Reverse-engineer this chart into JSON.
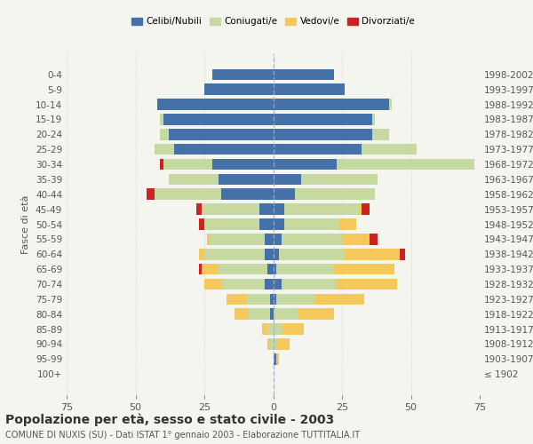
{
  "age_groups": [
    "100+",
    "95-99",
    "90-94",
    "85-89",
    "80-84",
    "75-79",
    "70-74",
    "65-69",
    "60-64",
    "55-59",
    "50-54",
    "45-49",
    "40-44",
    "35-39",
    "30-34",
    "25-29",
    "20-24",
    "15-19",
    "10-14",
    "5-9",
    "0-4"
  ],
  "birth_years": [
    "≤ 1902",
    "1903-1907",
    "1908-1912",
    "1913-1917",
    "1918-1922",
    "1923-1927",
    "1928-1932",
    "1933-1937",
    "1938-1942",
    "1943-1947",
    "1948-1952",
    "1953-1957",
    "1958-1962",
    "1963-1967",
    "1968-1972",
    "1973-1977",
    "1978-1982",
    "1983-1987",
    "1988-1992",
    "1993-1997",
    "1998-2002"
  ],
  "males": {
    "celibi": [
      0,
      0,
      0,
      0,
      1,
      1,
      3,
      2,
      3,
      3,
      5,
      5,
      19,
      20,
      22,
      36,
      38,
      40,
      42,
      25,
      22
    ],
    "coniugati": [
      0,
      0,
      1,
      2,
      8,
      9,
      16,
      18,
      22,
      20,
      20,
      21,
      24,
      18,
      18,
      7,
      3,
      1,
      0,
      0,
      0
    ],
    "vedovi": [
      0,
      0,
      1,
      2,
      5,
      7,
      6,
      6,
      2,
      1,
      0,
      0,
      0,
      0,
      0,
      0,
      0,
      0,
      0,
      0,
      0
    ],
    "divorziati": [
      0,
      0,
      0,
      0,
      0,
      0,
      0,
      1,
      0,
      0,
      2,
      2,
      3,
      0,
      1,
      0,
      0,
      0,
      0,
      0,
      0
    ]
  },
  "females": {
    "nubili": [
      0,
      1,
      0,
      0,
      0,
      1,
      3,
      1,
      2,
      3,
      4,
      4,
      8,
      10,
      23,
      32,
      36,
      36,
      42,
      26,
      22
    ],
    "coniugate": [
      0,
      0,
      1,
      3,
      9,
      14,
      20,
      21,
      24,
      22,
      20,
      27,
      29,
      28,
      50,
      20,
      6,
      1,
      1,
      0,
      0
    ],
    "vedove": [
      0,
      1,
      5,
      8,
      13,
      18,
      22,
      22,
      20,
      10,
      6,
      1,
      0,
      0,
      0,
      0,
      0,
      0,
      0,
      0,
      0
    ],
    "divorziate": [
      0,
      0,
      0,
      0,
      0,
      0,
      0,
      0,
      2,
      3,
      0,
      3,
      0,
      0,
      0,
      0,
      0,
      0,
      0,
      0,
      0
    ]
  },
  "colors": {
    "celibi": "#4472a8",
    "coniugati": "#c5d9a0",
    "vedovi": "#f5c85c",
    "divorziati": "#cc2222"
  },
  "legend_labels": [
    "Celibi/Nubili",
    "Coniugati/e",
    "Vedovi/e",
    "Divorziati/e"
  ],
  "title": "Popolazione per età, sesso e stato civile - 2003",
  "subtitle": "COMUNE DI NUXIS (SU) - Dati ISTAT 1° gennaio 2003 - Elaborazione TUTTITALIA.IT",
  "ylabel_left": "Fasce di età",
  "xlim": 75,
  "background_color": "#f5f5f0"
}
